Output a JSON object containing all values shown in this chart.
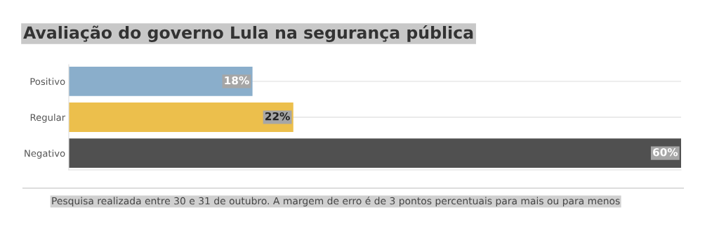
{
  "chart_data": {
    "type": "bar",
    "orientation": "horizontal",
    "title": "Avaliação do governo Lula na segurança pública",
    "categories": [
      "Positivo",
      "Regular",
      "Negativo"
    ],
    "values": [
      18,
      22,
      60
    ],
    "colors": [
      "#8aaecb",
      "#ecbf4c",
      "#505050"
    ],
    "value_labels": [
      "18%",
      "22%",
      "60%"
    ],
    "grid": "y",
    "annotations": [
      "Pesquisa realizada entre 30 e 31 de outubro. A margem de erro é de 3 pontos percentuais para mais ou para menos"
    ]
  }
}
